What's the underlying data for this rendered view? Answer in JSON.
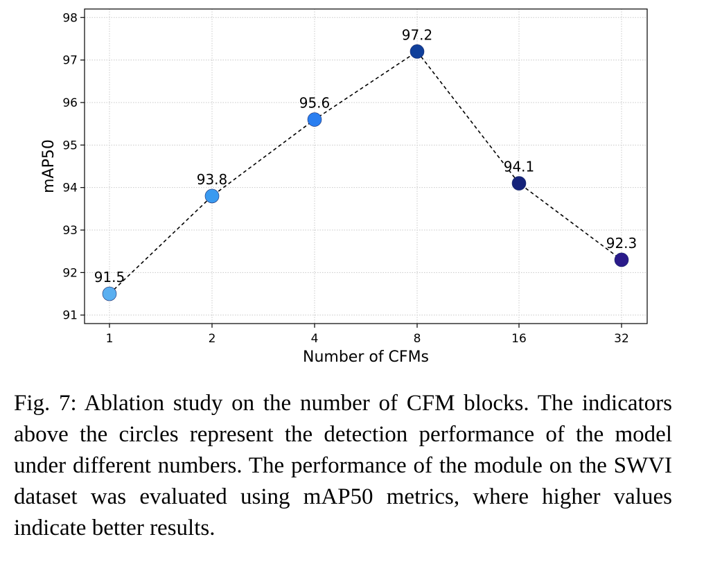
{
  "chart_data": {
    "type": "line",
    "x": [
      "1",
      "2",
      "4",
      "8",
      "16",
      "32"
    ],
    "values": [
      91.5,
      93.8,
      95.6,
      97.2,
      94.1,
      92.3
    ],
    "data_labels": [
      "91.5",
      "93.8",
      "95.6",
      "97.2",
      "94.1",
      "92.3"
    ],
    "point_colors": [
      "#5aaff0",
      "#3a9af0",
      "#2a7ef0",
      "#103f9a",
      "#15237a",
      "#2a1a8a"
    ],
    "line_style": "dashed",
    "line_color": "#000000",
    "xlabel": "Number of CFMs",
    "ylabel": "mAP50",
    "yticks": [
      "91",
      "92",
      "93",
      "94",
      "95",
      "96",
      "97",
      "98"
    ],
    "ylim": [
      90.8,
      98.2
    ],
    "grid": true,
    "grid_style": "dotted"
  },
  "caption": "Fig. 7: Ablation study on the number of CFM blocks. The indicators above the circles represent the detection performance of the model under different numbers. The performance of the module on the SWVI dataset was evaluated using mAP50 metrics, where higher values indicate better results."
}
